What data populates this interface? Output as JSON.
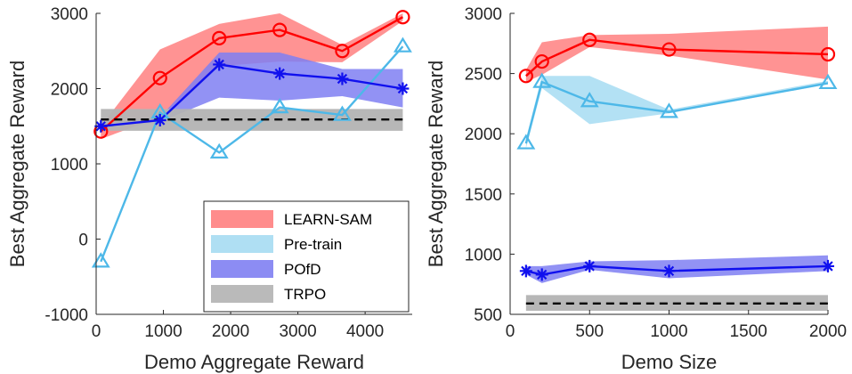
{
  "colors": {
    "learn": "#ff0000",
    "learn_band": "#ff8080",
    "pretrain": "#4db8e8",
    "pretrain_band": "#a6dcf2",
    "pofd": "#1010ee",
    "pofd_band": "#7f7ff2",
    "trpo_band": "#b3b3b3",
    "trpo": "#000000",
    "axis": "#262626"
  },
  "chart_data": [
    {
      "type": "line",
      "title": "",
      "xlabel": "Demo Aggregate Reward",
      "ylabel": "Best Aggregate Reward",
      "xlim": [
        0,
        4700
      ],
      "ylim": [
        -1000,
        3000
      ],
      "xticks": [
        0,
        1000,
        2000,
        3000,
        4000
      ],
      "xtick_labels": [
        "0",
        "1000",
        "2000",
        "3000",
        "4000"
      ],
      "yticks": [
        -1000,
        0,
        1000,
        2000,
        3000
      ],
      "ytick_labels": [
        "-1000",
        "0",
        "1000",
        "2000",
        "3000"
      ],
      "legend_position": "bottom-right",
      "series": [
        {
          "key": "learn",
          "name": "LEARN-SAM",
          "marker": "circle",
          "x": [
            70,
            950,
            1830,
            2730,
            3660,
            4560
          ],
          "values": [
            1430,
            2140,
            2670,
            2780,
            2500,
            2950
          ],
          "lower": [
            1330,
            1620,
            2300,
            2360,
            2350,
            2900
          ],
          "upper": [
            1500,
            2520,
            2860,
            3000,
            2580,
            3000
          ]
        },
        {
          "key": "pretrain",
          "name": "Pre-train",
          "marker": "triangle",
          "x": [
            70,
            950,
            1830,
            2730,
            3660,
            4560
          ],
          "values": [
            -300,
            1680,
            1150,
            1750,
            1650,
            2560
          ],
          "lower": [
            -300,
            1680,
            1150,
            1750,
            1650,
            2560
          ],
          "upper": [
            -300,
            1680,
            1150,
            1750,
            1650,
            2560
          ]
        },
        {
          "key": "pofd",
          "name": "POfD",
          "marker": "star",
          "x": [
            70,
            950,
            1830,
            2730,
            3660,
            4560
          ],
          "values": [
            1500,
            1580,
            2320,
            2200,
            2130,
            2000
          ],
          "lower": [
            1470,
            1560,
            1880,
            1840,
            1900,
            1750
          ],
          "upper": [
            1540,
            1620,
            2480,
            2480,
            2260,
            2260
          ]
        },
        {
          "key": "trpo",
          "name": "TRPO",
          "marker": "dashed",
          "x": [
            70,
            4560
          ],
          "values": [
            1590,
            1590
          ],
          "lower": [
            1440,
            1440
          ],
          "upper": [
            1730,
            1730
          ]
        }
      ]
    },
    {
      "type": "line",
      "title": "",
      "xlabel": "Demo Size",
      "ylabel": "Best Aggregate Reward",
      "xlim": [
        0,
        2000
      ],
      "ylim": [
        500,
        3000
      ],
      "xticks": [
        0,
        500,
        1000,
        1500,
        2000
      ],
      "xtick_labels": [
        "0",
        "500",
        "1000",
        "1500",
        "2000"
      ],
      "yticks": [
        500,
        1000,
        1500,
        2000,
        2500,
        3000
      ],
      "ytick_labels": [
        "500",
        "1000",
        "1500",
        "2000",
        "2500",
        "3000"
      ],
      "series": [
        {
          "key": "learn",
          "name": "LEARN-SAM",
          "marker": "circle",
          "x": [
            100,
            200,
            500,
            1000,
            2000
          ],
          "values": [
            2480,
            2600,
            2780,
            2700,
            2660
          ],
          "lower": [
            2430,
            2490,
            2720,
            2650,
            2450
          ],
          "upper": [
            2530,
            2760,
            2820,
            2830,
            2890
          ]
        },
        {
          "key": "pretrain",
          "name": "Pre-train",
          "marker": "triangle",
          "x": [
            100,
            200,
            500,
            1000,
            2000
          ],
          "values": [
            1920,
            2430,
            2270,
            2180,
            2420
          ],
          "lower": [
            1880,
            2380,
            2080,
            2170,
            2410
          ],
          "upper": [
            1960,
            2480,
            2480,
            2200,
            2440
          ]
        },
        {
          "key": "pofd",
          "name": "POfD",
          "marker": "star",
          "x": [
            100,
            200,
            500,
            1000,
            2000
          ],
          "values": [
            860,
            830,
            900,
            860,
            900
          ],
          "lower": [
            830,
            760,
            870,
            800,
            860
          ],
          "upper": [
            900,
            900,
            940,
            950,
            990
          ]
        },
        {
          "key": "trpo",
          "name": "TRPO",
          "marker": "dashed",
          "x": [
            100,
            2000
          ],
          "values": [
            590,
            590
          ],
          "lower": [
            530,
            530
          ],
          "upper": [
            660,
            660
          ]
        }
      ]
    }
  ]
}
